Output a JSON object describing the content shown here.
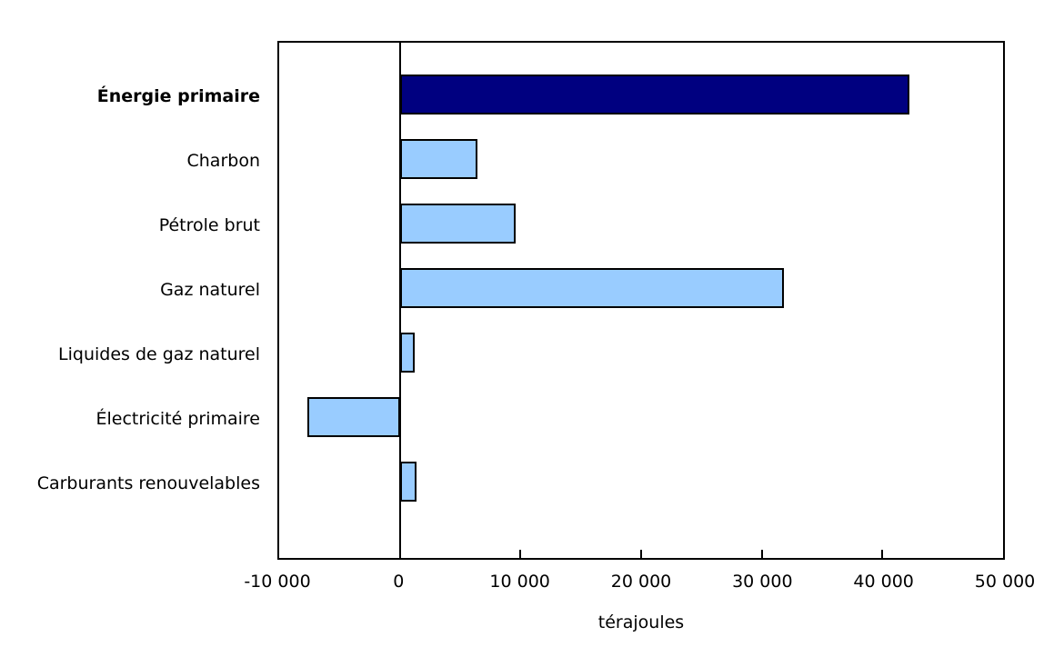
{
  "chart_data": {
    "type": "bar",
    "orientation": "horizontal",
    "title": "",
    "xlabel": "térajoules",
    "xlim": [
      -10000,
      50000
    ],
    "xtick_values": [
      -10000,
      0,
      10000,
      20000,
      30000,
      40000,
      50000
    ],
    "xtick_labels": [
      "-10 000",
      "0",
      "10 000",
      "20 000",
      "30 000",
      "40 000",
      "50 000"
    ],
    "categories": [
      "Énergie primaire",
      "Charbon",
      "Pétrole brut",
      "Gaz naturel",
      "Liquides de gaz naturel",
      "Électricité primaire",
      "Carburants renouvelables"
    ],
    "values": [
      42200,
      6400,
      9600,
      31800,
      1200,
      -7700,
      1400
    ],
    "emphasized_index": 0,
    "grid": false,
    "legend": false,
    "colors": {
      "emphasis_bar": "#000080",
      "default_bar": "#99CCFF",
      "bar_border": "#000000",
      "axis": "#000000",
      "background": "#FFFFFF",
      "text": "#000000"
    }
  }
}
